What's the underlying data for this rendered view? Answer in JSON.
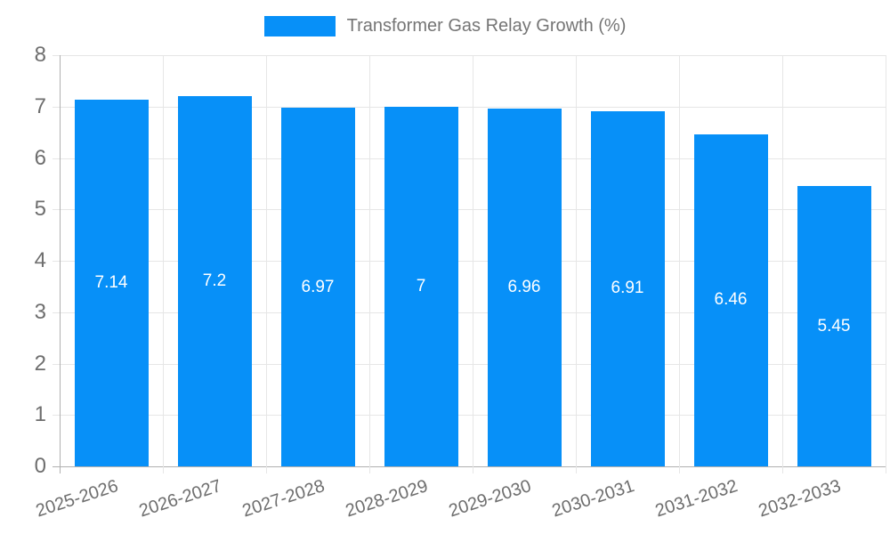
{
  "chart_data": {
    "type": "bar",
    "title": "",
    "legend": {
      "position": "top",
      "label": "Transformer Gas Relay Growth (%)"
    },
    "categories": [
      "2025-2026",
      "2026-2027",
      "2027-2028",
      "2028-2029",
      "2029-2030",
      "2030-2031",
      "2031-2032",
      "2032-2033"
    ],
    "values": [
      7.14,
      7.2,
      6.97,
      7,
      6.96,
      6.91,
      6.46,
      5.45
    ],
    "value_labels": [
      "7.14",
      "7.2",
      "6.97",
      "7",
      "6.96",
      "6.91",
      "6.46",
      "5.45"
    ],
    "xlabel": "",
    "ylabel": "",
    "ylim": [
      0,
      8
    ],
    "yticks": [
      0,
      1,
      2,
      3,
      4,
      5,
      6,
      7,
      8
    ],
    "grid": true,
    "colors": {
      "bar": "#0790f8",
      "grid": "#e6e6e6",
      "axis": "#b0b0b0",
      "tick_label": "#6e6e6e",
      "legend_label": "#757575",
      "value_label": "#ffffff",
      "background": "#ffffff"
    }
  }
}
